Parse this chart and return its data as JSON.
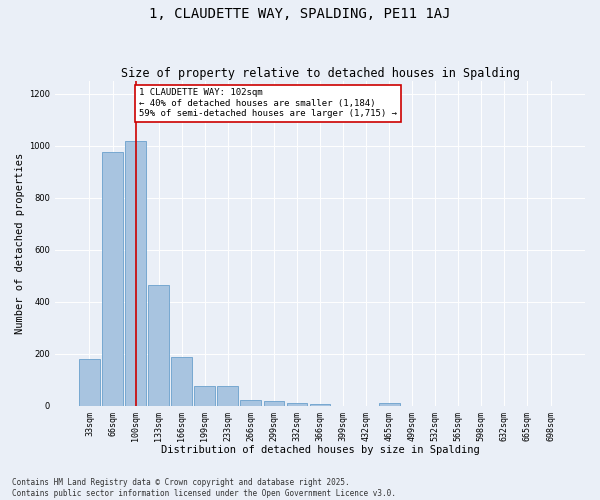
{
  "title": "1, CLAUDETTE WAY, SPALDING, PE11 1AJ",
  "subtitle": "Size of property relative to detached houses in Spalding",
  "xlabel": "Distribution of detached houses by size in Spalding",
  "ylabel": "Number of detached properties",
  "categories": [
    "33sqm",
    "66sqm",
    "100sqm",
    "133sqm",
    "166sqm",
    "199sqm",
    "233sqm",
    "266sqm",
    "299sqm",
    "332sqm",
    "366sqm",
    "399sqm",
    "432sqm",
    "465sqm",
    "499sqm",
    "532sqm",
    "565sqm",
    "598sqm",
    "632sqm",
    "665sqm",
    "698sqm"
  ],
  "values": [
    180,
    975,
    1020,
    465,
    190,
    78,
    78,
    22,
    18,
    12,
    8,
    0,
    0,
    12,
    0,
    0,
    0,
    0,
    0,
    0,
    0
  ],
  "bar_color": "#a8c4e0",
  "bar_edge_color": "#6aa0cc",
  "vline_x": 2,
  "vline_color": "#cc0000",
  "annotation_text": "1 CLAUDETTE WAY: 102sqm\n← 40% of detached houses are smaller (1,184)\n59% of semi-detached houses are larger (1,715) →",
  "annotation_box_color": "#cc0000",
  "background_color": "#eaeff7",
  "ylim": [
    0,
    1250
  ],
  "yticks": [
    0,
    200,
    400,
    600,
    800,
    1000,
    1200
  ],
  "footer_text": "Contains HM Land Registry data © Crown copyright and database right 2025.\nContains public sector information licensed under the Open Government Licence v3.0.",
  "title_fontsize": 10,
  "subtitle_fontsize": 8.5,
  "xlabel_fontsize": 7.5,
  "ylabel_fontsize": 7.5,
  "tick_fontsize": 6,
  "annotation_fontsize": 6.5,
  "footer_fontsize": 5.5
}
